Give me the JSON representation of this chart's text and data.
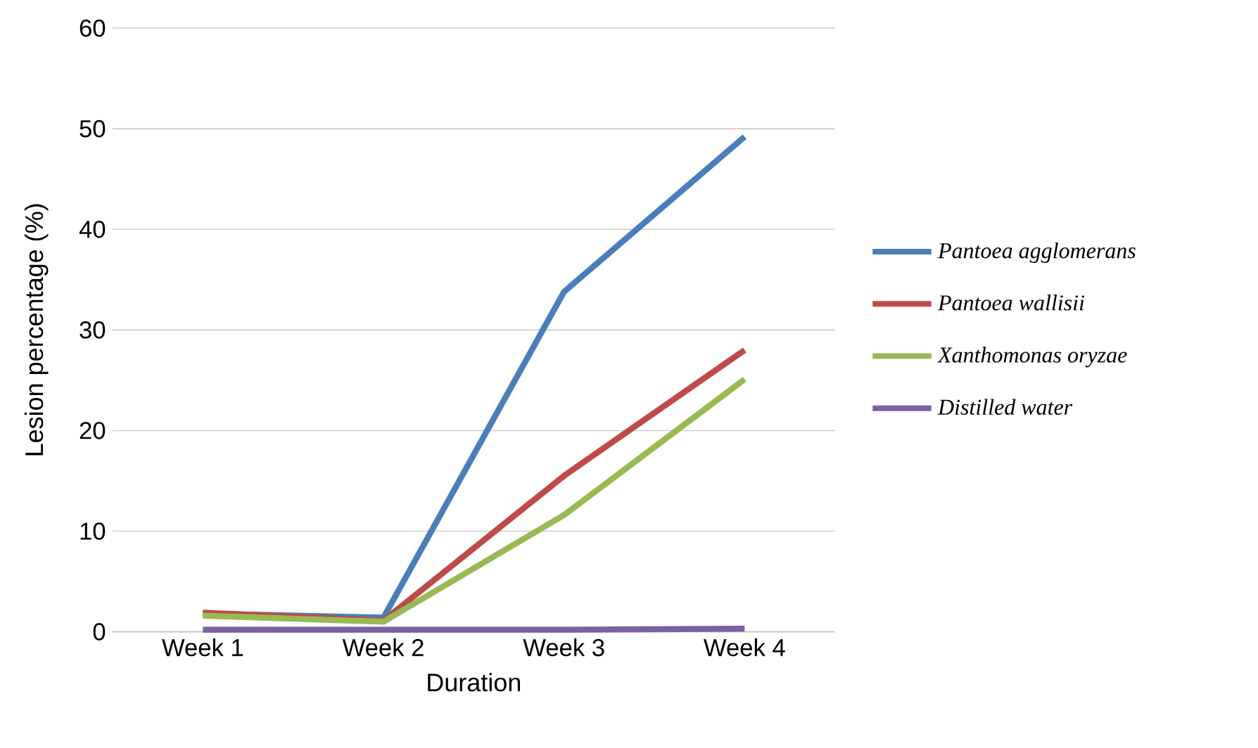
{
  "chart_data": {
    "type": "line",
    "xlabel": "Duration",
    "ylabel": "Lesion percentage (%)",
    "categories": [
      "Week 1",
      "Week 2",
      "Week 3",
      "Week 4"
    ],
    "series": [
      {
        "name": "Pantoea agglomerans",
        "color": "#4a7ebb",
        "values": [
          1.8,
          1.4,
          33.8,
          49.2
        ]
      },
      {
        "name": "Pantoea wallisii",
        "color": "#be4b48",
        "values": [
          1.9,
          1.1,
          15.5,
          28
        ]
      },
      {
        "name": "Xanthomonas oryzae",
        "color": "#98b954",
        "values": [
          1.6,
          1.0,
          11.6,
          25.1
        ]
      },
      {
        "name": "Distilled water",
        "color": "#7d60a0",
        "values": [
          0.2,
          0.2,
          0.2,
          0.3
        ]
      }
    ],
    "ylim": [
      0,
      60
    ],
    "yticks": [
      0,
      10,
      20,
      30,
      40,
      50,
      60
    ],
    "grid": "y",
    "legend": "right",
    "marker": "none",
    "line_style": "solid"
  }
}
